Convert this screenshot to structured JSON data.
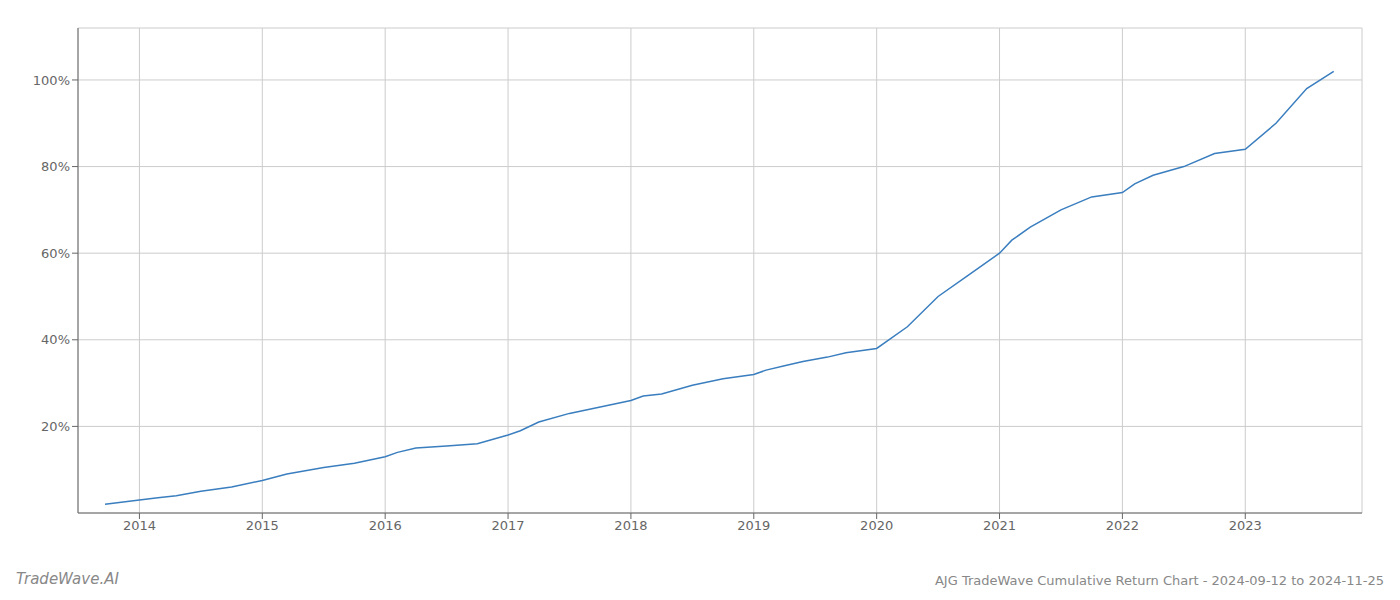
{
  "chart_data": {
    "type": "line",
    "title": "AJG TradeWave Cumulative Return Chart - 2024-09-12 to 2024-11-25",
    "annotations": [
      "TradeWave.AI"
    ],
    "color": "#3a7ebf",
    "grid": true,
    "x": [
      2013.72,
      2014.0,
      2014.15,
      2014.3,
      2014.5,
      2014.75,
      2015.0,
      2015.2,
      2015.5,
      2015.75,
      2016.0,
      2016.1,
      2016.25,
      2016.5,
      2016.75,
      2017.0,
      2017.1,
      2017.25,
      2017.5,
      2017.75,
      2018.0,
      2018.1,
      2018.25,
      2018.5,
      2018.75,
      2019.0,
      2019.1,
      2019.25,
      2019.4,
      2019.6,
      2019.75,
      2020.0,
      2020.25,
      2020.5,
      2020.75,
      2021.0,
      2021.1,
      2021.25,
      2021.5,
      2021.75,
      2022.0,
      2022.1,
      2022.25,
      2022.5,
      2022.75,
      2023.0,
      2023.25,
      2023.5,
      2023.72
    ],
    "values": [
      2,
      3,
      3.5,
      4,
      5,
      6,
      7.5,
      9,
      10.5,
      11.5,
      13,
      14,
      15,
      15.5,
      16,
      18,
      19,
      21,
      23,
      24.5,
      26,
      27,
      27.5,
      29.5,
      31,
      32,
      33,
      34,
      35,
      36,
      37,
      38,
      43,
      50,
      55,
      60,
      63,
      66,
      70,
      73,
      74,
      76,
      78,
      80,
      83,
      84,
      90,
      98,
      102
    ],
    "xlim": [
      2013.5,
      2023.95
    ],
    "xticks": [
      2014,
      2015,
      2016,
      2017,
      2018,
      2019,
      2020,
      2021,
      2022,
      2023
    ],
    "ylim": [
      0,
      112
    ],
    "yticks": [
      {
        "value": 20,
        "label": "20%"
      },
      {
        "value": 40,
        "label": "40%"
      },
      {
        "value": 60,
        "label": "60%"
      },
      {
        "value": 80,
        "label": "80%"
      },
      {
        "value": 100,
        "label": "100%"
      }
    ]
  }
}
